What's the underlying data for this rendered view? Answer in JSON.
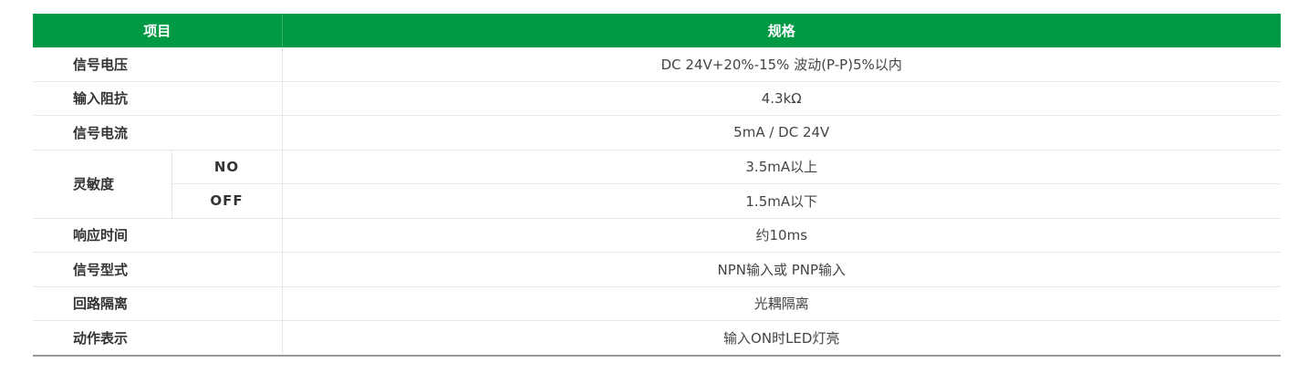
{
  "header": {
    "item": "项目",
    "spec": "规格"
  },
  "colors": {
    "header_bg": "#009944"
  },
  "rows": [
    {
      "label": "信号电压",
      "value": "DC 24V+20%-15% 波动(P-P)5%以内"
    },
    {
      "label": "输入阻抗",
      "value": "4.3kΩ"
    },
    {
      "label": "信号电流",
      "value": "5mA / DC 24V"
    },
    {
      "label": "灵敏度",
      "sub": [
        {
          "label": "NO",
          "value": "3.5mA以上"
        },
        {
          "label": "OFF",
          "value": "1.5mA以下"
        }
      ]
    },
    {
      "label": "响应时间",
      "value": "约10ms"
    },
    {
      "label": "信号型式",
      "value": "NPN输入或 PNP输入"
    },
    {
      "label": "回路隔离",
      "value": "光耦隔离"
    },
    {
      "label": "动作表示",
      "value": "输入ON时LED灯亮"
    }
  ]
}
